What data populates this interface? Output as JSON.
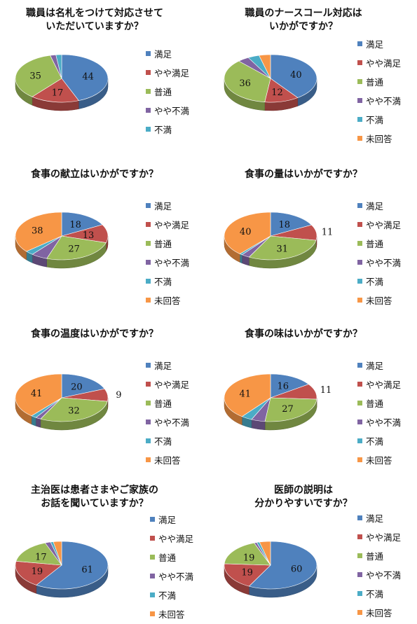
{
  "colors": {
    "satisfied": "#4f81bd",
    "somewhat_satisfied": "#c0504d",
    "neutral": "#9bbb59",
    "somewhat_dissatisfied": "#8064a2",
    "dissatisfied": "#4bacc6",
    "no_answer": "#f79646"
  },
  "chart_data": [
    {
      "type": "pie",
      "title_lines": [
        "職員は名札をつけて対応させて",
        "いただいていますか？"
      ],
      "categories": [
        "満足",
        "やや満足",
        "普通",
        "やや不満",
        "不満"
      ],
      "values": [
        44,
        17,
        35,
        2,
        2
      ],
      "labels": [
        "44",
        "17",
        "35",
        "",
        ""
      ],
      "legend_position": "right"
    },
    {
      "type": "pie",
      "title_lines": [
        "職員のナースコール対応は",
        "いかがですか？"
      ],
      "categories": [
        "満足",
        "やや満足",
        "普通",
        "やや不満",
        "不満",
        "未回答"
      ],
      "values": [
        40,
        12,
        36,
        4,
        4,
        4
      ],
      "labels": [
        "40",
        "12",
        "36",
        "",
        "",
        ""
      ],
      "legend_position": "right"
    },
    {
      "type": "pie",
      "title_lines": [
        "食事の献立はいかがですか？"
      ],
      "categories": [
        "満足",
        "やや満足",
        "普通",
        "やや不満",
        "不満",
        "未回答"
      ],
      "values": [
        18,
        13,
        27,
        6,
        3,
        38
      ],
      "labels": [
        "18",
        "13",
        "27",
        "",
        "",
        "38"
      ],
      "legend_position": "right"
    },
    {
      "type": "pie",
      "title_lines": [
        "食事の量はいかがですか？"
      ],
      "categories": [
        "満足",
        "やや満足",
        "普通",
        "やや不満",
        "不満",
        "未回答"
      ],
      "values": [
        18,
        11,
        31,
        3,
        1,
        40
      ],
      "labels": [
        "18",
        "11",
        "31",
        "",
        "",
        "40"
      ],
      "legend_position": "right"
    },
    {
      "type": "pie",
      "title_lines": [
        "食事の温度はいかがですか？"
      ],
      "categories": [
        "満足",
        "やや満足",
        "普通",
        "やや不満",
        "不満",
        "未回答"
      ],
      "values": [
        20,
        9,
        32,
        2,
        2,
        41
      ],
      "labels": [
        "20",
        "9",
        "32",
        "",
        "",
        "41"
      ],
      "legend_position": "right"
    },
    {
      "type": "pie",
      "title_lines": [
        "食事の味はいかがですか？"
      ],
      "categories": [
        "満足",
        "やや満足",
        "普通",
        "やや不満",
        "不満",
        "未回答"
      ],
      "values": [
        16,
        11,
        27,
        5,
        4,
        41
      ],
      "labels": [
        "16",
        "11",
        "27",
        "",
        "",
        "41"
      ],
      "legend_position": "right"
    },
    {
      "type": "pie",
      "title_lines": [
        "主治医は患者さまやご家族の",
        "お話を聞いていますか？"
      ],
      "categories": [
        "満足",
        "やや満足",
        "普通",
        "やや不満",
        "不満",
        "未回答"
      ],
      "values": [
        61,
        19,
        17,
        2,
        1,
        3
      ],
      "labels": [
        "61",
        "19",
        "17",
        "",
        "",
        ""
      ],
      "legend_position": "right"
    },
    {
      "type": "pie",
      "title_lines": [
        "医師の説明は",
        "分かりやすいですか？"
      ],
      "categories": [
        "満足",
        "やや満足",
        "普通",
        "やや不満",
        "不満",
        "未回答"
      ],
      "values": [
        60,
        19,
        19,
        1,
        1,
        4
      ],
      "labels": [
        "60",
        "19",
        "19",
        "",
        "",
        ""
      ],
      "legend_position": "right"
    }
  ]
}
